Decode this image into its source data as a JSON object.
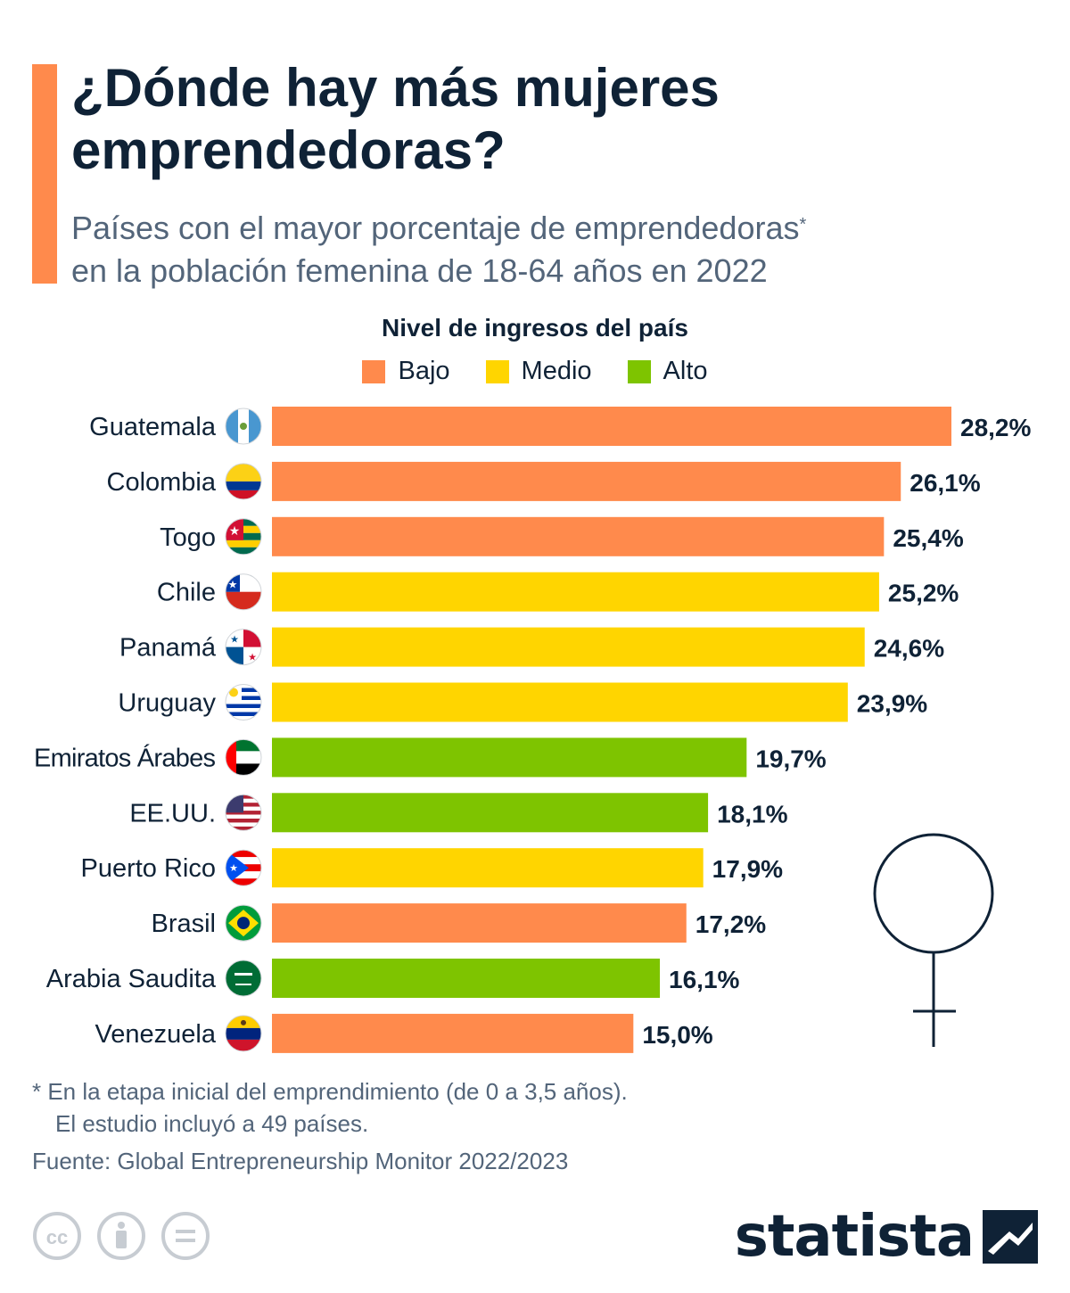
{
  "title": "¿Dónde hay más mujeres emprendedoras?",
  "subtitle_line1": "Países con el mayor porcentaje de emprendedoras",
  "subtitle_mark": "*",
  "subtitle_line2": "en la población femenina de 18-64 años en 2022",
  "legend_title": "Nivel de ingresos del país",
  "legend": [
    {
      "label": "Bajo",
      "color": "#ff8a4c"
    },
    {
      "label": "Medio",
      "color": "#ffd500"
    },
    {
      "label": "Alto",
      "color": "#7ec400"
    }
  ],
  "chart_data": {
    "type": "bar",
    "orientation": "horizontal",
    "categories": [
      "Guatemala",
      "Colombia",
      "Togo",
      "Chile",
      "Panamá",
      "Uruguay",
      "Emiratos Árabes",
      "EE.UU.",
      "Puerto Rico",
      "Brasil",
      "Arabia Saudita",
      "Venezuela"
    ],
    "values": [
      28.2,
      26.1,
      25.4,
      25.2,
      24.6,
      23.9,
      19.7,
      18.1,
      17.9,
      17.2,
      16.1,
      15.0
    ],
    "value_labels": [
      "28,2%",
      "26,1%",
      "25,4%",
      "25,2%",
      "24,6%",
      "23,9%",
      "19,7%",
      "18,1%",
      "17,9%",
      "17,2%",
      "16,1%",
      "15,0%"
    ],
    "income_level": [
      "Bajo",
      "Bajo",
      "Bajo",
      "Medio",
      "Medio",
      "Medio",
      "Alto",
      "Alto",
      "Medio",
      "Bajo",
      "Alto",
      "Bajo"
    ],
    "flag_icons": [
      "guatemala-flag-icon",
      "colombia-flag-icon",
      "togo-flag-icon",
      "chile-flag-icon",
      "panama-flag-icon",
      "uruguay-flag-icon",
      "uae-flag-icon",
      "usa-flag-icon",
      "puerto-rico-flag-icon",
      "brazil-flag-icon",
      "saudi-arabia-flag-icon",
      "venezuela-flag-icon"
    ],
    "xlim": [
      0,
      28.2
    ],
    "grid": false,
    "legend_position": "top-center"
  },
  "footnote_line1": "* En la etapa inicial del emprendimiento (de 0 a 3,5 años).",
  "footnote_line2": "El estudio incluyó a 49 países.",
  "source": "Fuente: Global Entrepreneurship Monitor 2022/2023",
  "brand": "statista",
  "colors": {
    "title": "#0f2236",
    "subtitle": "#53657a",
    "accent": "#ff8a4c"
  },
  "icons": [
    "cc-icon",
    "attribution-icon",
    "no-derivatives-icon",
    "statista-logo-icon",
    "female-symbol-icon"
  ]
}
